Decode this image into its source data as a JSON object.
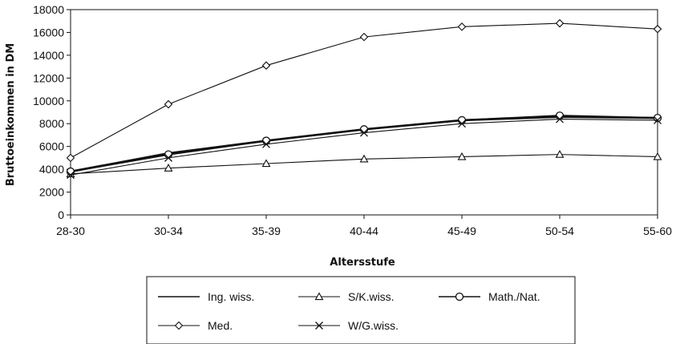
{
  "chart_data": {
    "type": "line",
    "title": "",
    "xlabel": "Altersstufe",
    "ylabel": "Bruttoeinkommen in DM",
    "categories": [
      "28-30",
      "30-34",
      "35-39",
      "40-44",
      "45-49",
      "50-54",
      "55-60"
    ],
    "ylim": [
      0,
      18000
    ],
    "yticks": [
      "0",
      "2000",
      "4000",
      "6000",
      "8000",
      "10000",
      "12000",
      "14000",
      "16000",
      "18000"
    ],
    "grid": false,
    "legend_position": "bottom",
    "series": [
      {
        "name": "Ing. wiss.",
        "marker": "none",
        "values": [
          3800,
          5400,
          6500,
          7500,
          8300,
          8600,
          8500
        ]
      },
      {
        "name": "S/K.wiss.",
        "marker": "triangle",
        "values": [
          3600,
          4100,
          4500,
          4900,
          5100,
          5300,
          5100
        ]
      },
      {
        "name": "Math./Nat.",
        "marker": "circle",
        "values": [
          3800,
          5300,
          6500,
          7500,
          8300,
          8700,
          8500
        ]
      },
      {
        "name": "Med.",
        "marker": "diamond",
        "values": [
          5000,
          9700,
          13100,
          15600,
          16500,
          16800,
          16300
        ]
      },
      {
        "name": "W/G.wiss.",
        "marker": "x",
        "values": [
          3500,
          5000,
          6200,
          7200,
          8000,
          8400,
          8300
        ]
      }
    ]
  }
}
